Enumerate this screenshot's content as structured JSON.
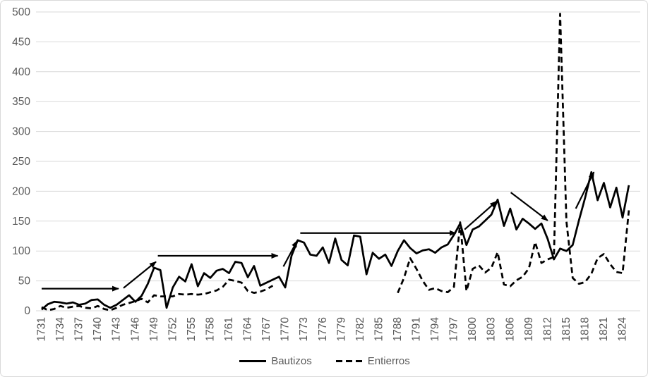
{
  "chart_data": {
    "type": "line",
    "title": "",
    "xlabel": "",
    "ylabel": "",
    "x_start": 1731,
    "x_end": 1825,
    "ylim": [
      0,
      500
    ],
    "y_tick_interval": 50,
    "y_tick_labels": [
      "0",
      "50",
      "100",
      "150",
      "200",
      "250",
      "300",
      "350",
      "400",
      "450",
      "500"
    ],
    "x_tick_interval": 3,
    "x_tick_labels": [
      "1731",
      "1734",
      "1737",
      "1740",
      "1743",
      "1746",
      "1749",
      "1752",
      "1755",
      "1758",
      "1761",
      "1764",
      "1767",
      "1770",
      "1773",
      "1776",
      "1779",
      "1782",
      "1785",
      "1788",
      "1791",
      "1794",
      "1797",
      "1800",
      "1803",
      "1806",
      "1809",
      "1812",
      "1815",
      "1818",
      "1821",
      "1824"
    ],
    "grid": true,
    "legend_position": "bottom-center",
    "series": [
      {
        "name": "Bautizos",
        "style": "solid",
        "color": "#000000",
        "start_year": 1731,
        "values": [
          2,
          11,
          15,
          14,
          12,
          14,
          10,
          12,
          18,
          19,
          10,
          5,
          10,
          18,
          26,
          15,
          25,
          45,
          72,
          68,
          5,
          39,
          57,
          49,
          78,
          41,
          63,
          55,
          67,
          70,
          63,
          82,
          80,
          56,
          75,
          42,
          47,
          52,
          57,
          39,
          92,
          118,
          114,
          94,
          92,
          106,
          80,
          121,
          85,
          76,
          126,
          124,
          61,
          97,
          87,
          94,
          75,
          100,
          118,
          105,
          96,
          101,
          103,
          97,
          106,
          111,
          127,
          146,
          110,
          136,
          141,
          151,
          161,
          186,
          142,
          171,
          136,
          154,
          146,
          137,
          146,
          120,
          86,
          104,
          100,
          110,
          151,
          189,
          232,
          185,
          214,
          173,
          206,
          156,
          210
        ]
      },
      {
        "name": "Entierros",
        "style": "dashed",
        "color": "#000000",
        "start_year": 1731,
        "values": [
          6,
          1,
          3,
          8,
          5,
          7,
          8,
          5,
          4,
          8,
          3,
          1,
          5,
          10,
          13,
          16,
          20,
          14,
          26,
          24,
          24,
          24,
          28,
          27,
          28,
          27,
          28,
          31,
          34,
          40,
          52,
          50,
          47,
          33,
          30,
          32,
          36,
          42,
          null,
          null,
          null,
          null,
          null,
          null,
          null,
          null,
          null,
          null,
          null,
          null,
          null,
          null,
          null,
          null,
          null,
          null,
          null,
          30,
          55,
          88,
          70,
          50,
          35,
          38,
          33,
          31,
          40,
          148,
          33,
          70,
          76,
          64,
          72,
          98,
          44,
          41,
          51,
          57,
          71,
          115,
          80,
          86,
          90,
          497,
          150,
          55,
          45,
          48,
          62,
          88,
          95,
          78,
          65,
          63,
          168
        ]
      }
    ],
    "annotations": {
      "arrows": [
        {
          "x1": 1731.0,
          "y1": 37,
          "x2": 1743.3,
          "y2": 37
        },
        {
          "x1": 1744.1,
          "y1": 38,
          "x2": 1749.3,
          "y2": 82
        },
        {
          "x1": 1749.6,
          "y1": 92,
          "x2": 1768.8,
          "y2": 92
        },
        {
          "x1": 1769.7,
          "y1": 74,
          "x2": 1771.9,
          "y2": 117
        },
        {
          "x1": 1772.4,
          "y1": 130,
          "x2": 1797.3,
          "y2": 130
        },
        {
          "x1": 1798.7,
          "y1": 136,
          "x2": 1803.8,
          "y2": 183
        },
        {
          "x1": 1806.1,
          "y1": 198,
          "x2": 1812.0,
          "y2": 151
        },
        {
          "x1": 1816.5,
          "y1": 171,
          "x2": 1819.4,
          "y2": 232
        }
      ]
    },
    "colors": {
      "line": "#000000",
      "axis_text": "#595959",
      "gridline": "#d9d9d9",
      "border": "#d9d9d9",
      "background": "#ffffff"
    }
  }
}
